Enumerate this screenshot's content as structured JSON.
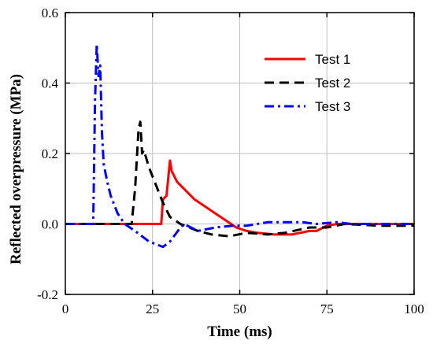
{
  "chart_data": {
    "type": "line",
    "xlabel": "Time (ms)",
    "ylabel": "Reflected overpressure (MPa)",
    "xlim": [
      0,
      100
    ],
    "ylim": [
      -0.2,
      0.6
    ],
    "xticks": [
      0,
      25,
      50,
      75,
      100
    ],
    "yticks": [
      -0.2,
      0.0,
      0.2,
      0.4,
      0.6
    ],
    "xtick_labels": [
      "0",
      "25",
      "50",
      "75",
      "100"
    ],
    "ytick_labels": [
      "-0.2",
      "0.0",
      "0.2",
      "0.4",
      "0.6"
    ],
    "grid": true,
    "legend_position": "top-right",
    "series": [
      {
        "name": "Test 1",
        "color": "#ff0000",
        "dash": "solid",
        "points": [
          [
            0,
            0
          ],
          [
            27.5,
            0
          ],
          [
            28,
            0.07
          ],
          [
            29,
            0.08
          ],
          [
            29.5,
            0.13
          ],
          [
            30,
            0.18
          ],
          [
            30.5,
            0.15
          ],
          [
            31,
            0.14
          ],
          [
            32,
            0.12
          ],
          [
            33,
            0.11
          ],
          [
            35,
            0.09
          ],
          [
            37,
            0.07
          ],
          [
            40,
            0.05
          ],
          [
            43,
            0.03
          ],
          [
            46,
            0.01
          ],
          [
            49,
            -0.01
          ],
          [
            52,
            -0.02
          ],
          [
            55,
            -0.025
          ],
          [
            60,
            -0.03
          ],
          [
            65,
            -0.03
          ],
          [
            70,
            -0.02
          ],
          [
            72,
            -0.02
          ],
          [
            75,
            -0.005
          ],
          [
            78,
            0.0
          ],
          [
            82,
            0.0
          ],
          [
            85,
            0.0
          ],
          [
            100,
            0.0
          ]
        ]
      },
      {
        "name": "Test 2",
        "color": "#000000",
        "dash": "long-dash",
        "points": [
          [
            0,
            0
          ],
          [
            19,
            0
          ],
          [
            20,
            0.1
          ],
          [
            21,
            0.27
          ],
          [
            21.5,
            0.29
          ],
          [
            22,
            0.2
          ],
          [
            22.5,
            0.21
          ],
          [
            24,
            0.16
          ],
          [
            26,
            0.11
          ],
          [
            28,
            0.06
          ],
          [
            30,
            0.02
          ],
          [
            33,
            0.0
          ],
          [
            38,
            -0.02
          ],
          [
            42,
            -0.03
          ],
          [
            47,
            -0.035
          ],
          [
            52,
            -0.025
          ],
          [
            58,
            -0.03
          ],
          [
            63,
            -0.025
          ],
          [
            70,
            -0.01
          ],
          [
            75,
            -0.01
          ],
          [
            80,
            0.0
          ],
          [
            90,
            -0.005
          ],
          [
            100,
            -0.005
          ]
        ]
      },
      {
        "name": "Test 3",
        "color": "#0000ff",
        "dash": "dash-dot",
        "points": [
          [
            0,
            0
          ],
          [
            8,
            0
          ],
          [
            8.5,
            0.35
          ],
          [
            9,
            0.51
          ],
          [
            9.5,
            0.42
          ],
          [
            10,
            0.45
          ],
          [
            10.5,
            0.26
          ],
          [
            11,
            0.17
          ],
          [
            12,
            0.12
          ],
          [
            13,
            0.08
          ],
          [
            15,
            0.03
          ],
          [
            17,
            0.0
          ],
          [
            20,
            -0.02
          ],
          [
            24,
            -0.05
          ],
          [
            28,
            -0.065
          ],
          [
            30,
            -0.05
          ],
          [
            33,
            -0.01
          ],
          [
            34,
            0.0
          ],
          [
            38,
            -0.02
          ],
          [
            43,
            -0.01
          ],
          [
            48,
            -0.005
          ],
          [
            52,
            -0.005
          ],
          [
            58,
            0.005
          ],
          [
            62,
            0.005
          ],
          [
            68,
            0.005
          ],
          [
            72,
            0.0
          ],
          [
            78,
            0.005
          ],
          [
            82,
            0.0
          ],
          [
            100,
            0.0
          ]
        ]
      }
    ]
  }
}
